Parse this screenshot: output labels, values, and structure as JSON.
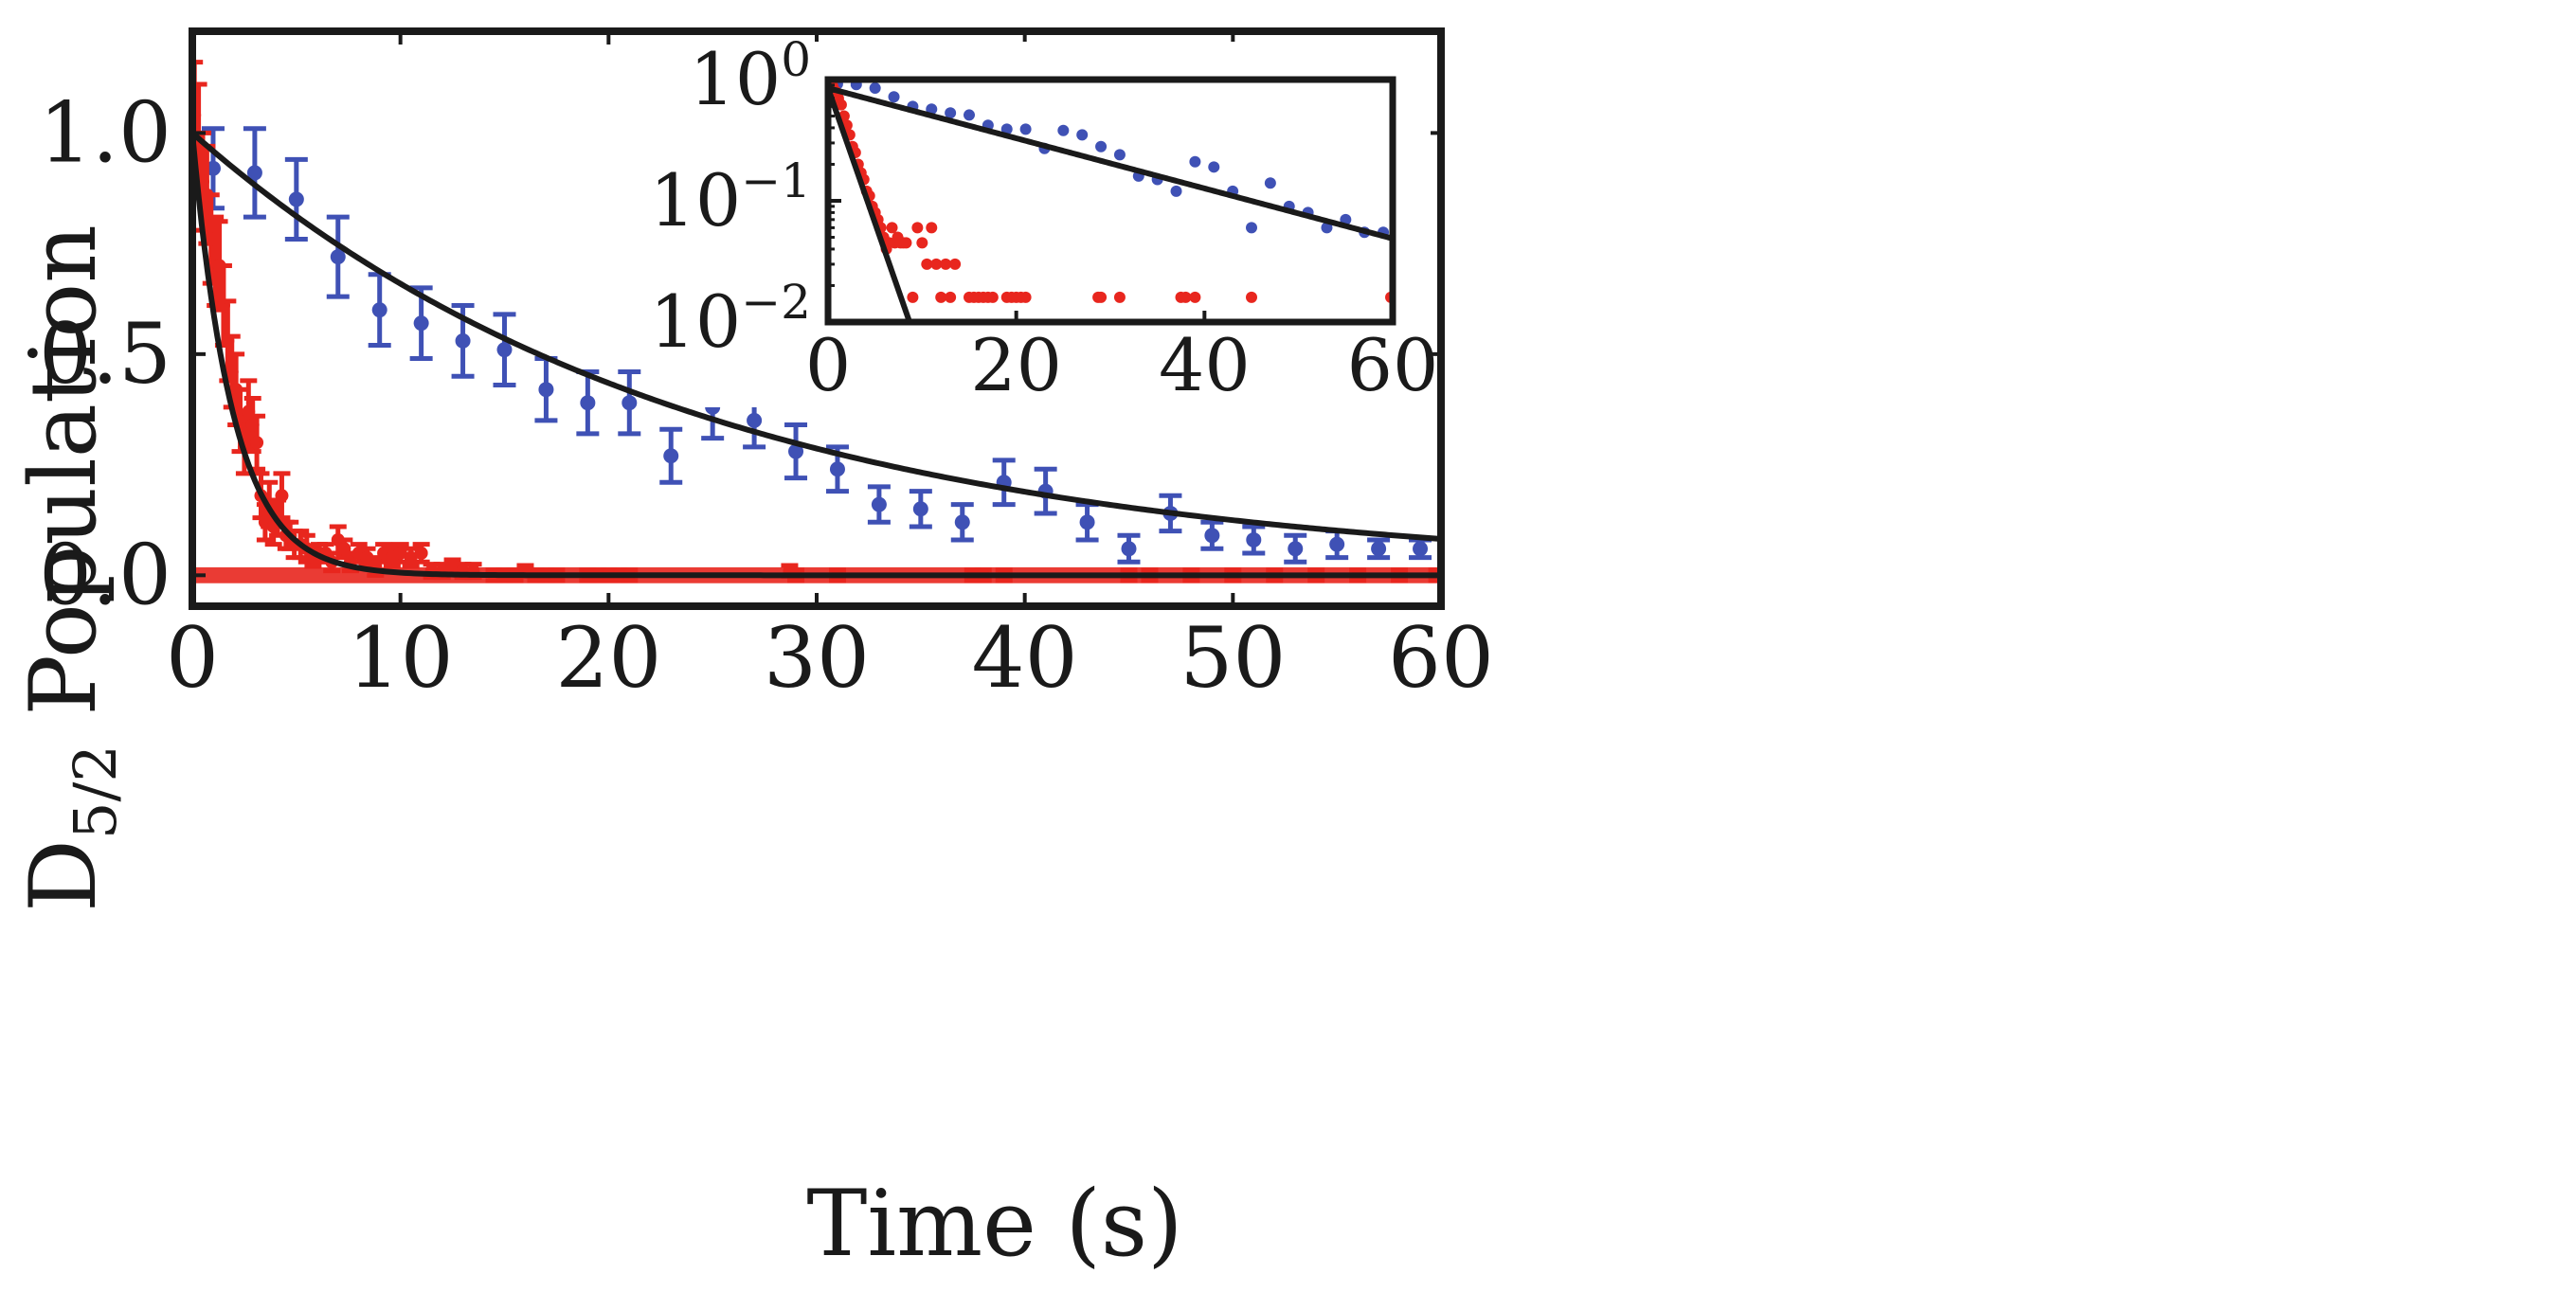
{
  "chart_data": [
    {
      "type": "scatter",
      "name": "main",
      "xlabel": "Time (s)",
      "ylabel_main": "D",
      "ylabel_sub": "5/2",
      "ylabel_rest": " Population",
      "xlim": [
        0,
        60
      ],
      "ylim": [
        -0.07,
        1.23
      ],
      "xticks": [
        0,
        10,
        20,
        30,
        40,
        50,
        60
      ],
      "xtick_labels": [
        "0",
        "10",
        "20",
        "30",
        "40",
        "50",
        "60"
      ],
      "yticks": [
        0.0,
        0.5,
        1.0
      ],
      "ytick_labels": [
        "0.0",
        "0.5",
        "1.0"
      ],
      "colors": {
        "blue": "#3f51b5",
        "red": "#e8261e",
        "fit": "#1a1a1a"
      },
      "series": [
        {
          "name": "blue-data",
          "x": [
            1,
            3,
            5,
            7,
            9,
            11,
            13,
            15,
            17,
            19,
            21,
            23,
            25,
            27,
            29,
            31,
            33,
            35,
            37,
            39,
            41,
            43,
            45,
            47,
            49,
            51,
            53,
            55,
            57,
            59
          ],
          "y": [
            0.92,
            0.91,
            0.85,
            0.72,
            0.6,
            0.57,
            0.53,
            0.51,
            0.42,
            0.39,
            0.39,
            0.27,
            0.38,
            0.35,
            0.28,
            0.24,
            0.16,
            0.15,
            0.12,
            0.21,
            0.19,
            0.12,
            0.06,
            0.14,
            0.09,
            0.08,
            0.06,
            0.07,
            0.06,
            0.06
          ],
          "err": [
            0.09,
            0.1,
            0.09,
            0.09,
            0.08,
            0.08,
            0.08,
            0.08,
            0.07,
            0.07,
            0.07,
            0.06,
            0.07,
            0.06,
            0.06,
            0.05,
            0.04,
            0.04,
            0.04,
            0.05,
            0.05,
            0.04,
            0.03,
            0.04,
            0.03,
            0.03,
            0.03,
            0.03,
            0.02,
            0.02
          ]
        },
        {
          "name": "red-data",
          "x": [
            0.1,
            0.3,
            0.5,
            0.7,
            0.9,
            1.1,
            1.3,
            1.5,
            1.7,
            1.9,
            2.1,
            2.3,
            2.5,
            2.7,
            2.9,
            3.1,
            3.3,
            3.5,
            3.7,
            3.9,
            4.1,
            4.3,
            4.5,
            4.7,
            4.9,
            5.2,
            5.5,
            5.8,
            6.1,
            6.4,
            6.7,
            7.0,
            7.3,
            7.6,
            8.0,
            8.4,
            8.8,
            9.2,
            9.6,
            10.0,
            10.5,
            11.0,
            11.5,
            12.0,
            12.5,
            13.0,
            13.5,
            14.5,
            15.0,
            15.5,
            16.0,
            16.5,
            17.0,
            17.5,
            19.0,
            19.5,
            20.0,
            20.5,
            21.0,
            28.7,
            29.0,
            31.0,
            37.5,
            38.0,
            39.0,
            45.0,
            46.0,
            48.0,
            50.0,
            52.0,
            54.0,
            56.0,
            58.0,
            59.8
          ],
          "y": [
            1.04,
            0.99,
            0.89,
            0.86,
            0.76,
            0.71,
            0.7,
            0.61,
            0.53,
            0.46,
            0.42,
            0.35,
            0.29,
            0.37,
            0.34,
            0.3,
            0.18,
            0.12,
            0.16,
            0.11,
            0.13,
            0.18,
            0.09,
            0.09,
            0.07,
            0.07,
            0.06,
            0.04,
            0.05,
            0.05,
            0.03,
            0.08,
            0.06,
            0.03,
            0.05,
            0.04,
            0.02,
            0.05,
            0.04,
            0.05,
            0.04,
            0.05,
            0.01,
            0.01,
            0.02,
            0.01,
            0.01,
            0.0,
            0.0,
            0.0,
            0.01,
            0.0,
            0.0,
            0.0,
            0.0,
            0.0,
            0.0,
            0.0,
            0.0,
            0.01,
            0.0,
            0.0,
            0.0,
            0.0,
            0.0,
            0.0,
            0.0,
            0.0,
            0.0,
            0.0,
            0.0,
            0.0,
            0.0,
            0.0
          ],
          "err": [
            0.12,
            0.12,
            0.11,
            0.11,
            0.1,
            0.1,
            0.1,
            0.09,
            0.09,
            0.08,
            0.08,
            0.07,
            0.06,
            0.07,
            0.06,
            0.06,
            0.05,
            0.04,
            0.05,
            0.04,
            0.04,
            0.05,
            0.03,
            0.03,
            0.03,
            0.03,
            0.03,
            0.02,
            0.02,
            0.02,
            0.02,
            0.03,
            0.02,
            0.02,
            0.02,
            0.02,
            0.02,
            0.02,
            0.02,
            0.02,
            0.02,
            0.02,
            0.015,
            0.015,
            0.015,
            0.015,
            0.015,
            0.012,
            0.012,
            0.012,
            0.012,
            0.012,
            0.012,
            0.012,
            0.012,
            0.012,
            0.012,
            0.012,
            0.012,
            0.012,
            0.012,
            0.012,
            0.012,
            0.012,
            0.012,
            0.012,
            0.012,
            0.012,
            0.012,
            0.012,
            0.012,
            0.012,
            0.012,
            0.012
          ]
        }
      ],
      "fits": [
        {
          "name": "blue-fit",
          "amplitude": 1.0,
          "tau": 24.0
        },
        {
          "name": "red-fit",
          "amplitude": 1.0,
          "tau": 1.95
        }
      ],
      "red_band": {
        "from": 0,
        "to": 60,
        "value": 0.0,
        "halfwidth": 0.018
      }
    },
    {
      "type": "scatter",
      "name": "inset",
      "yscale": "log",
      "xlim": [
        0,
        60
      ],
      "ylim": [
        0.01,
        1.0
      ],
      "xticks": [
        0,
        20,
        40,
        60
      ],
      "xtick_labels": [
        "0",
        "20",
        "40",
        "60"
      ],
      "yticks": [
        1.0,
        0.1,
        0.01
      ],
      "ytick_base": "10",
      "ytick_exponents": [
        "0",
        "−1",
        "−2"
      ],
      "series": [
        {
          "name": "blue-inset",
          "x": [
            1,
            3,
            5,
            7,
            9,
            11,
            13,
            15,
            17,
            19,
            21,
            23,
            25,
            27,
            29,
            31,
            33,
            35,
            37,
            39,
            41,
            43,
            45,
            47,
            49,
            51,
            53,
            55,
            57,
            59
          ],
          "y": [
            0.92,
            0.91,
            0.85,
            0.72,
            0.6,
            0.57,
            0.53,
            0.51,
            0.42,
            0.39,
            0.39,
            0.27,
            0.38,
            0.35,
            0.28,
            0.24,
            0.16,
            0.15,
            0.12,
            0.21,
            0.19,
            0.12,
            0.06,
            0.14,
            0.09,
            0.08,
            0.06,
            0.07,
            0.055,
            0.055
          ]
        },
        {
          "name": "red-inset",
          "x": [
            0.2,
            0.5,
            0.8,
            1.1,
            1.4,
            1.7,
            2.0,
            2.3,
            2.6,
            2.9,
            3.2,
            3.5,
            3.8,
            4.1,
            4.4,
            4.7,
            5.0,
            5.3,
            5.6,
            5.9,
            6.2,
            6.5,
            6.8,
            7.1,
            7.4,
            7.7,
            8.0,
            8.3,
            9.0,
            9.5,
            10.0,
            10.5,
            11.0,
            11.5,
            12.0,
            12.5,
            13.0,
            13.5,
            15.0,
            15.5,
            16.0,
            16.5,
            17.0,
            17.5,
            19.0,
            19.5,
            20.0,
            20.5,
            21.0,
            28.7,
            29.0,
            31.0,
            37.5,
            38.0,
            39.0,
            45.0,
            59.8
          ],
          "y": [
            0.95,
            0.88,
            0.8,
            0.7,
            0.62,
            0.5,
            0.42,
            0.35,
            0.28,
            0.25,
            0.2,
            0.17,
            0.15,
            0.12,
            0.11,
            0.09,
            0.08,
            0.07,
            0.06,
            0.05,
            0.04,
            0.045,
            0.06,
            0.045,
            0.05,
            0.045,
            0.045,
            0.045,
            0.016,
            0.06,
            0.045,
            0.03,
            0.06,
            0.03,
            0.016,
            0.03,
            0.016,
            0.03,
            0.016,
            0.016,
            0.016,
            0.016,
            0.016,
            0.016,
            0.016,
            0.016,
            0.016,
            0.016,
            0.016,
            0.016,
            0.016,
            0.016,
            0.016,
            0.016,
            0.016,
            0.016,
            0.016
          ]
        }
      ],
      "fits": [
        {
          "name": "blue-inset-fit",
          "amplitude": 0.85,
          "tau": 21.0
        },
        {
          "name": "red-inset-fit",
          "amplitude": 0.85,
          "tau": 1.95
        }
      ]
    }
  ]
}
